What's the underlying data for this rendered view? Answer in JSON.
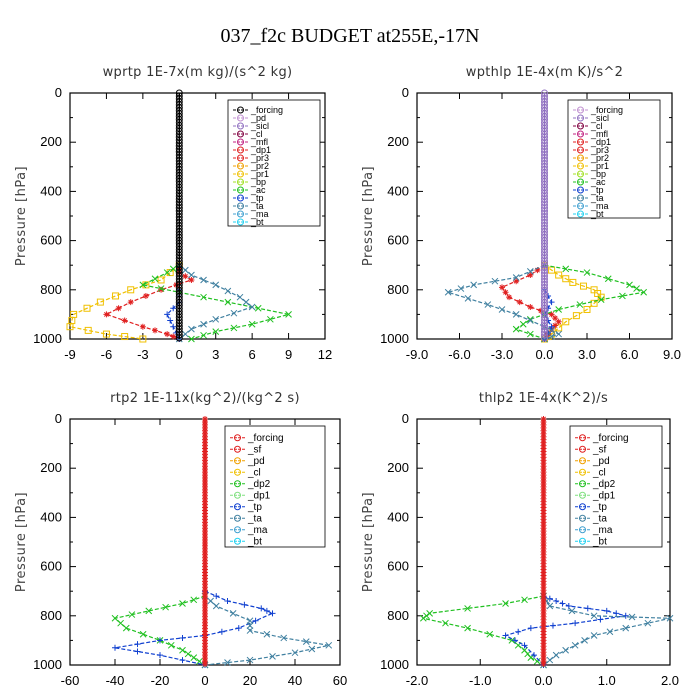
{
  "title": "037_f2c  BUDGET at255E,-17N",
  "chart_data": [
    {
      "type": "line",
      "title": "wprtp   1E-7x(m kg)/(s^2 kg)",
      "ylabel": "Pressure [hPa]",
      "xlim": [
        -9,
        12
      ],
      "ylim": [
        1000,
        0
      ],
      "xticks": [
        "-9",
        "-6",
        "-3",
        "0",
        "3",
        "6",
        "9",
        "12"
      ],
      "xtick_values": [
        -9,
        -6,
        -3,
        0,
        3,
        6,
        9,
        12
      ],
      "yticks": [
        "0",
        "200",
        "400",
        "600",
        "800",
        "1000"
      ],
      "legend": [
        "_forcing",
        "_pd",
        "_sicl",
        "_cl",
        "_mfl",
        "_dp1",
        "_pr3",
        "_pr2",
        "_pr1",
        "_bp",
        "_ac",
        "_tp",
        "_ta",
        "_ma",
        "_bt"
      ],
      "series": [
        {
          "name": "_pr1",
          "color": "#f0c000",
          "marker": "box",
          "points": [
            [
              0,
              700
            ],
            [
              -1.5,
              760
            ],
            [
              -4,
              800
            ],
            [
              -6.5,
              850
            ],
            [
              -8.7,
              900
            ],
            [
              -9,
              950
            ],
            [
              -6,
              980
            ],
            [
              -3,
              1000
            ]
          ]
        },
        {
          "name": "_pr3",
          "color": "#e02020",
          "marker": "star",
          "points": [
            [
              0,
              700
            ],
            [
              0,
              730
            ],
            [
              1,
              760
            ],
            [
              -1.5,
              800
            ],
            [
              -4,
              850
            ],
            [
              -6,
              900
            ],
            [
              -3,
              950
            ],
            [
              -1,
              980
            ],
            [
              0,
              1000
            ]
          ]
        },
        {
          "name": "_ac",
          "color": "#20c020",
          "marker": "x",
          "points": [
            [
              0,
              700
            ],
            [
              -1,
              730
            ],
            [
              -3,
              780
            ],
            [
              0,
              810
            ],
            [
              4,
              850
            ],
            [
              9,
              900
            ],
            [
              6,
              940
            ],
            [
              3,
              970
            ],
            [
              1,
              1000
            ]
          ]
        },
        {
          "name": "_tp",
          "color": "#1040d0",
          "marker": "plus",
          "points": [
            [
              0,
              800
            ],
            [
              0,
              850
            ],
            [
              -1,
              900
            ],
            [
              -0.5,
              950
            ],
            [
              0,
              1000
            ]
          ]
        },
        {
          "name": "_ta",
          "color": "#4080a0",
          "marker": "x",
          "points": [
            [
              0,
              700
            ],
            [
              1,
              740
            ],
            [
              3,
              780
            ],
            [
              5,
              830
            ],
            [
              6,
              870
            ],
            [
              3,
              920
            ],
            [
              1,
              960
            ],
            [
              0,
              1000
            ]
          ]
        },
        {
          "name": "_forcing",
          "color": "#000000",
          "marker": "circle",
          "points": [
            [
              0,
              0
            ],
            [
              0,
              1000
            ]
          ]
        }
      ]
    },
    {
      "type": "line",
      "title": "wpthlp   1E-4x(m K)/s^2",
      "ylabel": "Pressure [hPa]",
      "xlim": [
        -9,
        9
      ],
      "ylim": [
        1000,
        0
      ],
      "xticks": [
        "-9.0",
        "-6.0",
        "-3.0",
        "0.0",
        "3.0",
        "6.0",
        "9.0"
      ],
      "xtick_values": [
        -9,
        -6,
        -3,
        0,
        3,
        6,
        9
      ],
      "yticks": [
        "0",
        "200",
        "400",
        "600",
        "800",
        "1000"
      ],
      "legend": [
        "_forcing",
        "_sicl",
        "_cl",
        "_mfl",
        "_dp1",
        "_pr3",
        "_pr2",
        "_pr1",
        "_bp",
        "_ac",
        "_tp",
        "_ta",
        "_ma",
        "_bt"
      ],
      "series": [
        {
          "name": "_pr1",
          "color": "#f0c000",
          "marker": "box",
          "points": [
            [
              0,
              700
            ],
            [
              1,
              740
            ],
            [
              2,
              770
            ],
            [
              3.5,
              800
            ],
            [
              4,
              830
            ],
            [
              3,
              880
            ],
            [
              1.5,
              930
            ],
            [
              0.5,
              980
            ],
            [
              0,
              1000
            ]
          ]
        },
        {
          "name": "_pr3",
          "color": "#e02020",
          "marker": "star",
          "points": [
            [
              0,
              700
            ],
            [
              -1,
              740
            ],
            [
              -3,
              790
            ],
            [
              -2.5,
              830
            ],
            [
              -1,
              870
            ],
            [
              0.5,
              900
            ],
            [
              1,
              930
            ],
            [
              0.5,
              960
            ],
            [
              0,
              1000
            ]
          ]
        },
        {
          "name": "_ac",
          "color": "#20c020",
          "marker": "x",
          "points": [
            [
              0,
              700
            ],
            [
              3,
              730
            ],
            [
              6,
              780
            ],
            [
              7,
              810
            ],
            [
              4,
              840
            ],
            [
              1,
              880
            ],
            [
              -1,
              920
            ],
            [
              -2,
              960
            ],
            [
              0,
              1000
            ]
          ]
        },
        {
          "name": "_tp",
          "color": "#1040d0",
          "marker": "plus",
          "points": [
            [
              0,
              800
            ],
            [
              0.5,
              850
            ],
            [
              0,
              900
            ],
            [
              0.5,
              950
            ],
            [
              0,
              1000
            ]
          ]
        },
        {
          "name": "_ta",
          "color": "#4080a0",
          "marker": "x",
          "points": [
            [
              0,
              700
            ],
            [
              -2,
              750
            ],
            [
              -5,
              780
            ],
            [
              -6.8,
              810
            ],
            [
              -4,
              860
            ],
            [
              -2,
              900
            ],
            [
              0,
              950
            ],
            [
              1,
              980
            ],
            [
              0,
              1000
            ]
          ]
        },
        {
          "name": "_forcing",
          "color": "#9070c0",
          "marker": "circle",
          "points": [
            [
              0,
              0
            ],
            [
              0,
              1000
            ]
          ]
        }
      ]
    },
    {
      "type": "line",
      "title": "rtp2   1E-11x(kg^2)/(kg^2 s)",
      "ylabel": "Pressure [hPa]",
      "xlim": [
        -60,
        60
      ],
      "ylim": [
        1000,
        0
      ],
      "xticks": [
        "-60",
        "-40",
        "-20",
        "0",
        "20",
        "40",
        "60"
      ],
      "xtick_values": [
        -60,
        -40,
        -20,
        0,
        20,
        40,
        60
      ],
      "yticks": [
        "0",
        "200",
        "400",
        "600",
        "800",
        "1000"
      ],
      "legend": [
        "_forcing",
        "_sf",
        "_pd",
        "_cl",
        "_dp2",
        "_dp1",
        "_tp",
        "_ta",
        "_ma",
        "_bt"
      ],
      "series": [
        {
          "name": "_dp2",
          "color": "#20c020",
          "marker": "x",
          "points": [
            [
              0,
              720
            ],
            [
              -10,
              750
            ],
            [
              -25,
              780
            ],
            [
              -40,
              810
            ],
            [
              -35,
              850
            ],
            [
              -20,
              900
            ],
            [
              -10,
              940
            ],
            [
              -5,
              970
            ],
            [
              0,
              1000
            ]
          ]
        },
        {
          "name": "_tp",
          "color": "#1040d0",
          "marker": "plus",
          "points": [
            [
              0,
              700
            ],
            [
              10,
              740
            ],
            [
              25,
              770
            ],
            [
              30,
              790
            ],
            [
              15,
              850
            ],
            [
              0,
              880
            ],
            [
              -20,
              900
            ],
            [
              -40,
              930
            ],
            [
              -20,
              960
            ],
            [
              0,
              1000
            ]
          ]
        },
        {
          "name": "_ta",
          "color": "#4080a0",
          "marker": "x",
          "points": [
            [
              0,
              720
            ],
            [
              5,
              760
            ],
            [
              20,
              820
            ],
            [
              20,
              860
            ],
            [
              35,
              890
            ],
            [
              55,
              920
            ],
            [
              40,
              950
            ],
            [
              20,
              980
            ],
            [
              0,
              1000
            ]
          ]
        },
        {
          "name": "_forcing",
          "color": "#e02020",
          "marker": "star",
          "points": [
            [
              0,
              0
            ],
            [
              0,
              1000
            ]
          ]
        }
      ]
    },
    {
      "type": "line",
      "title": "thlp2   1E-4x(K^2)/s",
      "ylabel": "Pressure [hPa]",
      "xlim": [
        -2,
        2
      ],
      "ylim": [
        1000,
        0
      ],
      "xticks": [
        "-2.0",
        "-1.0",
        "0.0",
        "1.0",
        "2.0"
      ],
      "xtick_values": [
        -2,
        -1,
        0,
        1,
        2
      ],
      "yticks": [
        "0",
        "200",
        "400",
        "600",
        "800",
        "1000"
      ],
      "legend": [
        "_forcing",
        "_sf",
        "_pd",
        "_cl",
        "_dp2",
        "_dp1",
        "_tp",
        "_ta",
        "_ma",
        "_bt"
      ],
      "series": [
        {
          "name": "_dp2",
          "color": "#20c020",
          "marker": "x",
          "points": [
            [
              0,
              720
            ],
            [
              -0.6,
              750
            ],
            [
              -1.8,
              790
            ],
            [
              -1.9,
              810
            ],
            [
              -1.2,
              850
            ],
            [
              -0.5,
              900
            ],
            [
              -0.3,
              940
            ],
            [
              -0.2,
              970
            ],
            [
              0,
              1000
            ]
          ]
        },
        {
          "name": "_tp",
          "color": "#1040d0",
          "marker": "plus",
          "points": [
            [
              0,
              720
            ],
            [
              0.2,
              740
            ],
            [
              0.4,
              760
            ],
            [
              1,
              780
            ],
            [
              1.3,
              800
            ],
            [
              0.5,
              830
            ],
            [
              -0.2,
              850
            ],
            [
              -0.6,
              880
            ],
            [
              -0.3,
              920
            ],
            [
              0,
              1000
            ]
          ]
        },
        {
          "name": "_ta",
          "color": "#4080a0",
          "marker": "x",
          "points": [
            [
              0,
              720
            ],
            [
              0.1,
              760
            ],
            [
              0.8,
              800
            ],
            [
              2,
              810
            ],
            [
              1.3,
              850
            ],
            [
              0.8,
              880
            ],
            [
              0.5,
              920
            ],
            [
              0.2,
              960
            ],
            [
              0,
              1000
            ]
          ]
        },
        {
          "name": "_forcing",
          "color": "#e02020",
          "marker": "star",
          "points": [
            [
              0,
              0
            ],
            [
              0,
              1000
            ]
          ]
        }
      ]
    }
  ]
}
